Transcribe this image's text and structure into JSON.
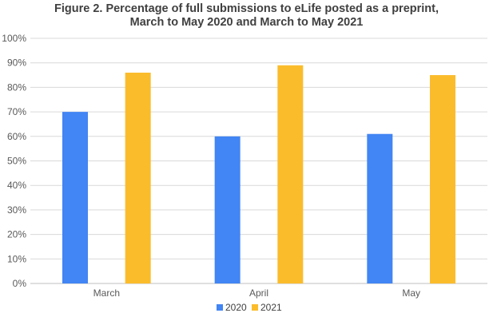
{
  "chart_data": {
    "type": "bar",
    "title_line1": "Figure 2. Percentage of full submissions to eLife posted as a preprint,",
    "title_line2": "March to May 2020 and March to May 2021",
    "categories": [
      "March",
      "April",
      "May"
    ],
    "series": [
      {
        "name": "2020",
        "values": [
          70,
          60,
          61
        ],
        "color": "#4285f4"
      },
      {
        "name": "2021",
        "values": [
          86,
          89,
          85
        ],
        "color": "#fbbc2c"
      }
    ],
    "y_ticks": [
      "0%",
      "10%",
      "20%",
      "30%",
      "40%",
      "50%",
      "60%",
      "70%",
      "80%",
      "90%",
      "100%"
    ],
    "ylim": [
      0,
      100
    ],
    "xlabel": "",
    "ylabel": "",
    "grid": true,
    "legend_position": "bottom"
  }
}
